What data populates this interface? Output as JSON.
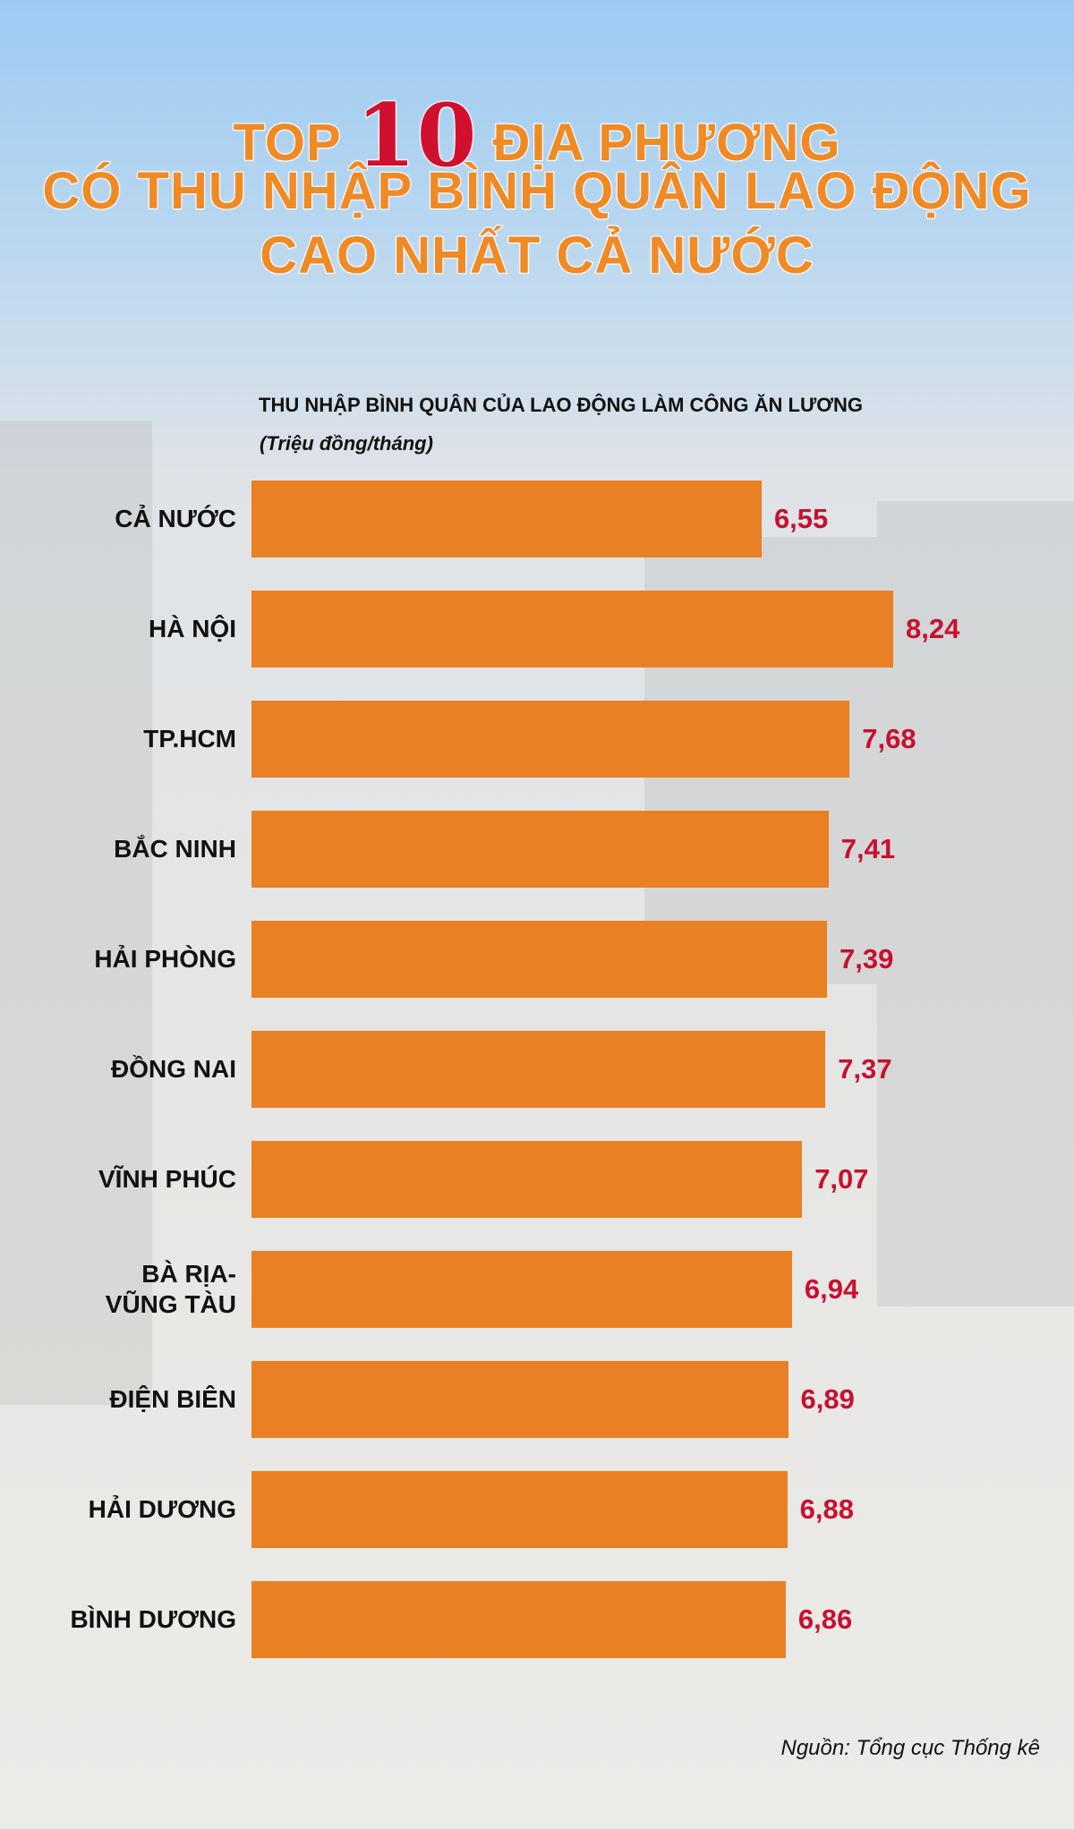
{
  "chart_data": {
    "type": "bar",
    "orientation": "horizontal",
    "title": {
      "line1_before": "TOP",
      "line1_number": "10",
      "line1_after": "ĐỊA PHƯƠNG",
      "line2": "CÓ THU NHẬP BÌNH QUÂN LAO ĐỘNG",
      "line3": "CAO NHẤT CẢ NƯỚC"
    },
    "subtitle": "THU NHẬP BÌNH QUÂN CỦA LAO ĐỘNG LÀM CÔNG ĂN LƯƠNG",
    "unit": "(Triệu đồng/tháng)",
    "categories": [
      "CẢ NƯỚC",
      "HÀ NỘI",
      "TP.HCM",
      "BẮC NINH",
      "HẢI PHÒNG",
      "ĐỒNG NAI",
      "VĨNH PHÚC",
      "BÀ RỊA-\nVŨNG TÀU",
      "ĐIỆN BIÊN",
      "HẢI DƯƠNG",
      "BÌNH DƯƠNG"
    ],
    "values": [
      6.55,
      8.24,
      7.68,
      7.41,
      7.39,
      7.37,
      7.07,
      6.94,
      6.89,
      6.88,
      6.86
    ],
    "value_labels": [
      "6,55",
      "8,24",
      "7,68",
      "7,41",
      "7,39",
      "7,37",
      "7,07",
      "6,94",
      "6,89",
      "6,88",
      "6,86"
    ],
    "color": "#e98023",
    "label_color": "#c8102e",
    "source": "Nguồn: Tổng cục Thống kê"
  }
}
